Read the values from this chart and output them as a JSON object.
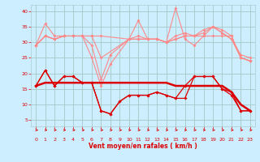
{
  "x": [
    0,
    1,
    2,
    3,
    4,
    5,
    6,
    7,
    8,
    9,
    10,
    11,
    12,
    13,
    14,
    15,
    16,
    17,
    18,
    19,
    20,
    21,
    22,
    23
  ],
  "line1": [
    29,
    36,
    32,
    32,
    32,
    32,
    25,
    16,
    23,
    null,
    31,
    37,
    31,
    31,
    30,
    41,
    31,
    29,
    32,
    35,
    33,
    31,
    26,
    25
  ],
  "line2": [
    29,
    32,
    31,
    32,
    32,
    32,
    29,
    18,
    26,
    null,
    31,
    32,
    31,
    31,
    30,
    32,
    33,
    32,
    34,
    35,
    34,
    32,
    25,
    24
  ],
  "line3": [
    29,
    32,
    31,
    32,
    32,
    32,
    32,
    25,
    null,
    null,
    31,
    31,
    31,
    31,
    30,
    31,
    32,
    32,
    33,
    35,
    33,
    31,
    25,
    24
  ],
  "line4": [
    29,
    32,
    31,
    32,
    32,
    32,
    32,
    32,
    null,
    null,
    31,
    31,
    31,
    31,
    30,
    31,
    32,
    32,
    32,
    32,
    32,
    32,
    25,
    24
  ],
  "line_dark1": [
    16,
    21,
    16,
    19,
    19,
    17,
    17,
    8,
    7,
    11,
    13,
    13,
    13,
    14,
    13,
    12,
    16,
    19,
    19,
    19,
    15,
    14,
    8,
    8
  ],
  "line_dark2": [
    16,
    21,
    16,
    19,
    19,
    17,
    17,
    8,
    7,
    11,
    13,
    13,
    13,
    14,
    13,
    12,
    12,
    19,
    19,
    19,
    15,
    13,
    8,
    8
  ],
  "line_dark3": [
    16,
    17,
    17,
    17,
    17,
    17,
    17,
    17,
    17,
    17,
    17,
    17,
    17,
    17,
    17,
    16,
    16,
    16,
    16,
    16,
    16,
    14,
    10,
    8
  ],
  "bg_color": "#cceeff",
  "grid_color": "#aacccc",
  "light_color": "#ff8888",
  "dark_color": "#dd0000",
  "xlabel": "Vent moyen/en rafales ( km/h )",
  "xlim": [
    -0.5,
    23.5
  ],
  "ylim": [
    3,
    42
  ],
  "yticks": [
    5,
    10,
    15,
    20,
    25,
    30,
    35,
    40
  ],
  "xticks": [
    0,
    1,
    2,
    3,
    4,
    5,
    6,
    7,
    8,
    9,
    10,
    11,
    12,
    13,
    14,
    15,
    16,
    17,
    18,
    19,
    20,
    21,
    22,
    23
  ]
}
